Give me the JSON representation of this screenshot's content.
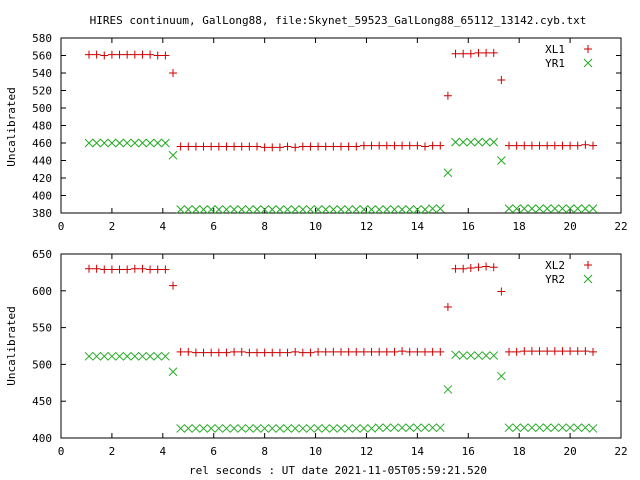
{
  "title": "HIRES continuum, GalLong88, file:Skynet_59523_GalLong88_65112_13142.cyb.txt",
  "xlabel": "rel seconds : UT date 2021-11-05T05:59:21.520",
  "colors": {
    "plus": "#cc0000",
    "cross": "#22aa22",
    "axis": "#000000"
  },
  "chart_data": [
    {
      "type": "scatter",
      "ylabel": "Uncalibrated",
      "xlim": [
        0,
        22
      ],
      "ylim": [
        380,
        580
      ],
      "xticks": [
        "0",
        "2",
        "4",
        "6",
        "8",
        "10",
        "12",
        "14",
        "16",
        "18",
        "20",
        "22"
      ],
      "yticks": [
        "380",
        "400",
        "420",
        "440",
        "460",
        "480",
        "500",
        "520",
        "540",
        "560",
        "580"
      ],
      "legend_position": "top-right",
      "series": [
        {
          "name": "XL1",
          "marker": "plus",
          "x": [
            1.1,
            1.4,
            1.7,
            2.0,
            2.3,
            2.6,
            2.9,
            3.2,
            3.5,
            3.8,
            4.1,
            4.4,
            4.7,
            5.0,
            5.3,
            5.6,
            5.9,
            6.2,
            6.5,
            6.8,
            7.1,
            7.4,
            7.7,
            8.0,
            8.3,
            8.6,
            8.9,
            9.2,
            9.5,
            9.8,
            10.1,
            10.4,
            10.7,
            11.0,
            11.3,
            11.6,
            11.9,
            12.2,
            12.5,
            12.8,
            13.1,
            13.4,
            13.7,
            14.0,
            14.3,
            14.6,
            14.9,
            15.2,
            15.5,
            15.8,
            16.1,
            16.4,
            16.7,
            17.0,
            17.3,
            17.6,
            17.9,
            18.2,
            18.5,
            18.8,
            19.1,
            19.4,
            19.7,
            20.0,
            20.3,
            20.6,
            20.9
          ],
          "y": [
            561,
            561,
            560,
            561,
            561,
            561,
            561,
            561,
            561,
            560,
            560,
            540,
            456,
            456,
            456,
            456,
            456,
            456,
            456,
            456,
            456,
            456,
            456,
            455,
            455,
            455,
            456,
            455,
            456,
            456,
            456,
            456,
            456,
            456,
            456,
            456,
            457,
            457,
            457,
            457,
            457,
            457,
            457,
            457,
            456,
            457,
            457,
            514,
            562,
            562,
            562,
            563,
            563,
            563,
            532,
            457,
            457,
            457,
            457,
            457,
            457,
            457,
            457,
            457,
            457,
            458,
            457
          ],
          "order": "by-x"
        },
        {
          "name": "YR1",
          "marker": "cross",
          "x": [
            1.1,
            1.4,
            1.7,
            2.0,
            2.3,
            2.6,
            2.9,
            3.2,
            3.5,
            3.8,
            4.1,
            4.4,
            4.7,
            5.0,
            5.3,
            5.6,
            5.9,
            6.2,
            6.5,
            6.8,
            7.1,
            7.4,
            7.7,
            8.0,
            8.3,
            8.6,
            8.9,
            9.2,
            9.5,
            9.8,
            10.1,
            10.4,
            10.7,
            11.0,
            11.3,
            11.6,
            11.9,
            12.2,
            12.5,
            12.8,
            13.1,
            13.4,
            13.7,
            14.0,
            14.3,
            14.6,
            14.9,
            15.2,
            15.5,
            15.8,
            16.1,
            16.4,
            16.7,
            17.0,
            17.3,
            17.6,
            17.9,
            18.2,
            18.5,
            18.8,
            19.1,
            19.4,
            19.7,
            20.0,
            20.3,
            20.6,
            20.9
          ],
          "y": [
            460,
            460,
            460,
            460,
            460,
            460,
            460,
            460,
            460,
            460,
            460,
            446,
            384,
            384,
            384,
            384,
            384,
            384,
            384,
            384,
            384,
            384,
            384,
            384,
            384,
            384,
            384,
            384,
            384,
            384,
            384,
            384,
            384,
            384,
            384,
            384,
            384,
            384,
            384,
            384,
            384,
            384,
            384,
            384,
            384,
            385,
            385,
            426,
            461,
            461,
            461,
            461,
            461,
            461,
            440,
            385,
            385,
            385,
            385,
            385,
            385,
            385,
            385,
            385,
            385,
            385,
            385
          ]
        }
      ]
    },
    {
      "type": "scatter",
      "ylabel": "Uncalibrated",
      "xlim": [
        0,
        22
      ],
      "ylim": [
        400,
        650
      ],
      "xticks": [
        "0",
        "2",
        "4",
        "6",
        "8",
        "10",
        "12",
        "14",
        "16",
        "18",
        "20",
        "22"
      ],
      "yticks": [
        "400",
        "450",
        "500",
        "550",
        "600",
        "650"
      ],
      "legend_position": "top-right",
      "series": [
        {
          "name": "XL2",
          "marker": "plus",
          "x": [
            1.1,
            1.4,
            1.7,
            2.0,
            2.3,
            2.6,
            2.9,
            3.2,
            3.5,
            3.8,
            4.1,
            4.4,
            4.7,
            5.0,
            5.3,
            5.6,
            5.9,
            6.2,
            6.5,
            6.8,
            7.1,
            7.4,
            7.7,
            8.0,
            8.3,
            8.6,
            8.9,
            9.2,
            9.5,
            9.8,
            10.1,
            10.4,
            10.7,
            11.0,
            11.3,
            11.6,
            11.9,
            12.2,
            12.5,
            12.8,
            13.1,
            13.4,
            13.7,
            14.0,
            14.3,
            14.6,
            14.9,
            15.2,
            15.5,
            15.8,
            16.1,
            16.4,
            16.7,
            17.0,
            17.3,
            17.6,
            17.9,
            18.2,
            18.5,
            18.8,
            19.1,
            19.4,
            19.7,
            20.0,
            20.3,
            20.6,
            20.9
          ],
          "y": [
            630,
            630,
            629,
            629,
            629,
            629,
            630,
            630,
            629,
            629,
            629,
            607,
            517,
            517,
            516,
            516,
            516,
            516,
            516,
            517,
            517,
            516,
            516,
            516,
            516,
            516,
            516,
            517,
            516,
            516,
            517,
            517,
            517,
            517,
            517,
            517,
            517,
            517,
            517,
            517,
            517,
            518,
            517,
            517,
            517,
            517,
            517,
            578,
            630,
            630,
            631,
            632,
            633,
            632,
            599,
            517,
            517,
            518,
            518,
            518,
            518,
            518,
            518,
            518,
            518,
            518,
            517
          ]
        },
        {
          "name": "YR2",
          "marker": "cross",
          "x": [
            1.1,
            1.4,
            1.7,
            2.0,
            2.3,
            2.6,
            2.9,
            3.2,
            3.5,
            3.8,
            4.1,
            4.4,
            4.7,
            5.0,
            5.3,
            5.6,
            5.9,
            6.2,
            6.5,
            6.8,
            7.1,
            7.4,
            7.7,
            8.0,
            8.3,
            8.6,
            8.9,
            9.2,
            9.5,
            9.8,
            10.1,
            10.4,
            10.7,
            11.0,
            11.3,
            11.6,
            11.9,
            12.2,
            12.5,
            12.8,
            13.1,
            13.4,
            13.7,
            14.0,
            14.3,
            14.6,
            14.9,
            15.2,
            15.5,
            15.8,
            16.1,
            16.4,
            16.7,
            17.0,
            17.3,
            17.6,
            17.9,
            18.2,
            18.5,
            18.8,
            19.1,
            19.4,
            19.7,
            20.0,
            20.3,
            20.6,
            20.9
          ],
          "y": [
            511,
            511,
            511,
            511,
            511,
            511,
            511,
            511,
            511,
            511,
            511,
            490,
            413,
            413,
            413,
            413,
            413,
            413,
            413,
            413,
            413,
            413,
            413,
            413,
            413,
            413,
            413,
            413,
            413,
            413,
            413,
            413,
            413,
            413,
            413,
            413,
            413,
            413,
            414,
            414,
            414,
            414,
            414,
            414,
            414,
            414,
            414,
            466,
            513,
            512,
            512,
            512,
            512,
            512,
            484,
            414,
            414,
            414,
            414,
            414,
            414,
            414,
            414,
            414,
            414,
            414,
            413
          ]
        }
      ]
    }
  ]
}
